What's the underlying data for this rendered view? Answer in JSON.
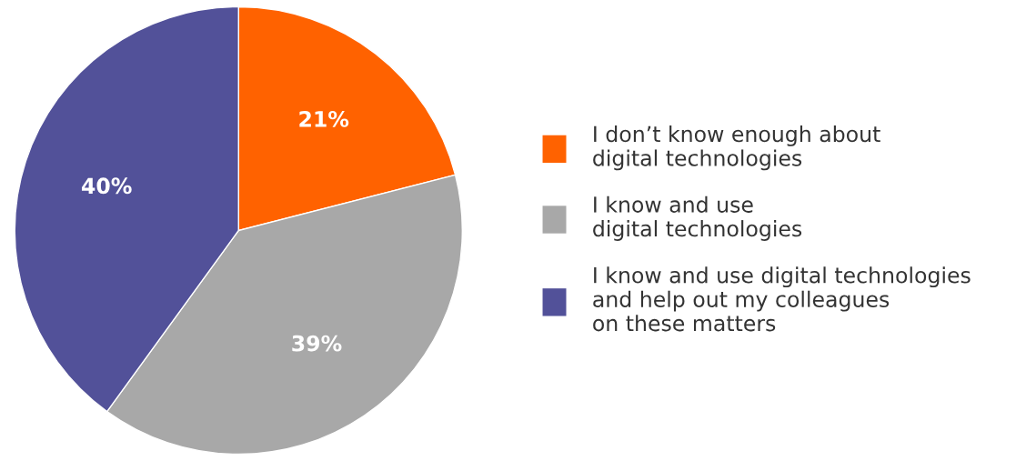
{
  "chart_data": {
    "type": "pie",
    "categories": [
      "I don’t know enough about\ndigital technologies",
      "I know and use\ndigital technologies",
      "I know and use digital technologies\nand help out my colleagues\non these matters"
    ],
    "values": [
      21,
      39,
      40
    ],
    "colors": [
      "#ff6200",
      "#a8a8a8",
      "#525199"
    ],
    "value_labels": [
      "21%",
      "39%",
      "40%"
    ],
    "legend": "right"
  }
}
